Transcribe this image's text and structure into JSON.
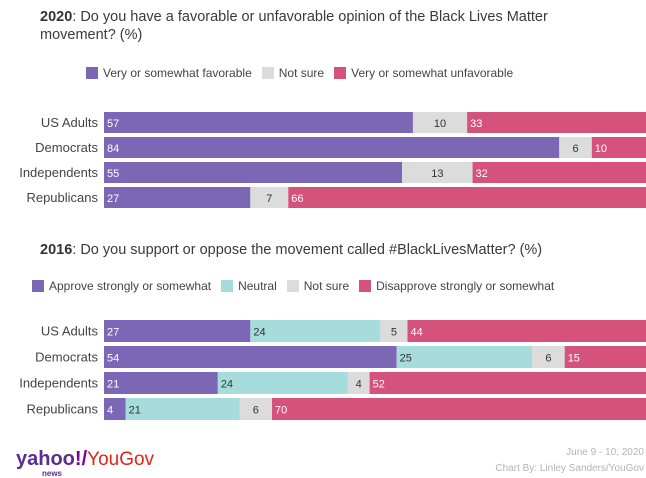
{
  "chart_data": [
    {
      "type": "bar",
      "stacked": true,
      "orientation": "horizontal",
      "title_year": "2020",
      "title": ": Do you have a favorable or unfavorable opinion of the Black Lives Matter movement? (%)",
      "categories": [
        "US Adults",
        "Democrats",
        "Independents",
        "Republicans"
      ],
      "series": [
        {
          "name": "Very or somewhat favorable",
          "color": "#7b67b5",
          "values": [
            57,
            84,
            55,
            27
          ]
        },
        {
          "name": "Not sure",
          "color": "#dcdcdc",
          "values": [
            10,
            6,
            13,
            7
          ]
        },
        {
          "name": "Very or somewhat unfavorable",
          "color": "#d5527d",
          "values": [
            33,
            10,
            32,
            66
          ]
        }
      ],
      "legend_position": "top"
    },
    {
      "type": "bar",
      "stacked": true,
      "orientation": "horizontal",
      "title_year": "2016",
      "title": ": Do you support or oppose the movement called #BlackLivesMatter? (%)",
      "categories": [
        "US Adults",
        "Democrats",
        "Independents",
        "Republicans"
      ],
      "series": [
        {
          "name": "Approve strongly or somewhat",
          "color": "#7b67b5",
          "values": [
            27,
            54,
            21,
            4
          ]
        },
        {
          "name": "Neutral",
          "color": "#a6dcdc",
          "values": [
            24,
            25,
            24,
            21
          ]
        },
        {
          "name": "Not sure",
          "color": "#dcdcdc",
          "values": [
            5,
            6,
            4,
            6
          ]
        },
        {
          "name": "Disapprove strongly or somewhat",
          "color": "#d5527d",
          "values": [
            44,
            15,
            52,
            70
          ]
        }
      ],
      "legend_position": "top"
    }
  ],
  "branding": {
    "yahoo": "yahoo",
    "yahoo_mark": "!",
    "slash": "/",
    "yougov": "YouGov",
    "yahoo_sub": "news"
  },
  "credits": {
    "date": "June 9 - 10, 2020",
    "chart_by": "Chart By: Linley Sanders/YouGov"
  }
}
